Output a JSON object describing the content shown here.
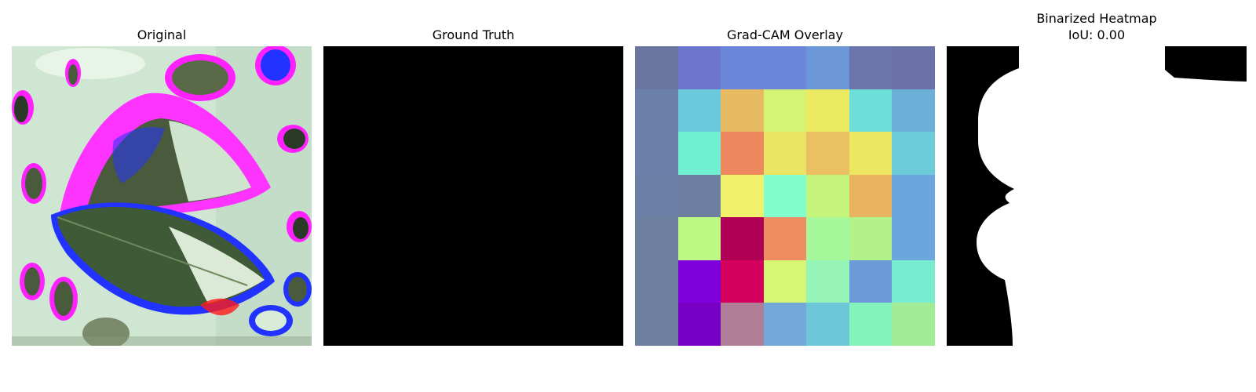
{
  "panels": {
    "original": {
      "title": "Original"
    },
    "ground_truth": {
      "title": "Ground Truth"
    },
    "gradcam": {
      "title": "Grad-CAM Overlay",
      "grid": [
        [
          "#6b76a0",
          "#6b76cc",
          "#6b86d8",
          "#6b86d8",
          "#6b96d8",
          "#6b76ac",
          "#6b72a8"
        ],
        [
          "#6b80aa",
          "#6cc8dc",
          "#e8ba62",
          "#d6f474",
          "#ecea60",
          "#6ce0d8",
          "#6cb0d8"
        ],
        [
          "#6b80aa",
          "#70f0d0",
          "#ee885e",
          "#eae464",
          "#eac062",
          "#ece660",
          "#6cccd8"
        ],
        [
          "#6b80a4",
          "#6e7ea0",
          "#f0f06a",
          "#80ffcc",
          "#c4f47a",
          "#e8b460",
          "#6ca6dc"
        ],
        [
          "#6d80a0",
          "#bcf882",
          "#b00056",
          "#ee8e60",
          "#a6f69a",
          "#b2f288",
          "#6ca6dc"
        ],
        [
          "#6d80a0",
          "#7e00dc",
          "#d4005e",
          "#d6f674",
          "#96f4b6",
          "#6c9ad8",
          "#78ecd0"
        ],
        [
          "#6d80a0",
          "#7800c4",
          "#b07e96",
          "#74a8d8",
          "#6cc8d8",
          "#84f4bc",
          "#a2ec98"
        ]
      ]
    },
    "binarized": {
      "title": "Binarized Heatmap",
      "iou": "IoU: 0.00"
    }
  }
}
